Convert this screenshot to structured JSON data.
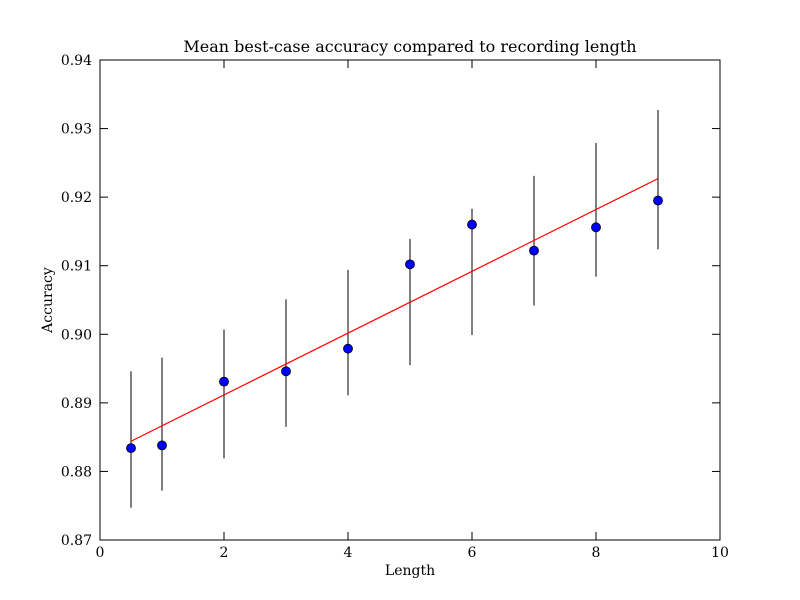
{
  "chart_data": {
    "type": "scatter",
    "title": "Mean best-case accuracy compared to recording length",
    "xlabel": "Length",
    "ylabel": "Accuracy",
    "xlim": [
      0,
      10
    ],
    "ylim": [
      0.87,
      0.94
    ],
    "x_ticks": [
      0,
      2,
      4,
      6,
      8,
      10
    ],
    "y_ticks": [
      0.87,
      0.88,
      0.89,
      0.9,
      0.91,
      0.92,
      0.93,
      0.94
    ],
    "x_tick_labels": [
      "0",
      "2",
      "4",
      "6",
      "8",
      "10"
    ],
    "y_tick_labels": [
      "0.87",
      "0.88",
      "0.89",
      "0.90",
      "0.91",
      "0.92",
      "0.93",
      "0.94"
    ],
    "grid": false,
    "points": [
      {
        "x": 0.5,
        "y": 0.8834,
        "err_low": 0.8747,
        "err_high": 0.8946
      },
      {
        "x": 1,
        "y": 0.8838,
        "err_low": 0.8772,
        "err_high": 0.8966
      },
      {
        "x": 2,
        "y": 0.8931,
        "err_low": 0.8819,
        "err_high": 0.9007
      },
      {
        "x": 3,
        "y": 0.8946,
        "err_low": 0.8865,
        "err_high": 0.9051
      },
      {
        "x": 4,
        "y": 0.8979,
        "err_low": 0.8911,
        "err_high": 0.9094
      },
      {
        "x": 5,
        "y": 0.9102,
        "err_low": 0.8955,
        "err_high": 0.9139
      },
      {
        "x": 6,
        "y": 0.916,
        "err_low": 0.8999,
        "err_high": 0.9183
      },
      {
        "x": 7,
        "y": 0.9122,
        "err_low": 0.9042,
        "err_high": 0.9231
      },
      {
        "x": 8,
        "y": 0.9156,
        "err_low": 0.9084,
        "err_high": 0.9279
      },
      {
        "x": 9,
        "y": 0.9195,
        "err_low": 0.9124,
        "err_high": 0.9327
      }
    ],
    "fit_line": {
      "x": [
        0.5,
        9
      ],
      "y": [
        0.8844,
        0.9227
      ]
    },
    "colors": {
      "points": "#0000ff",
      "point_edge": "#000000",
      "error_bars": "#555555",
      "fit_line": "#ff0000"
    }
  }
}
